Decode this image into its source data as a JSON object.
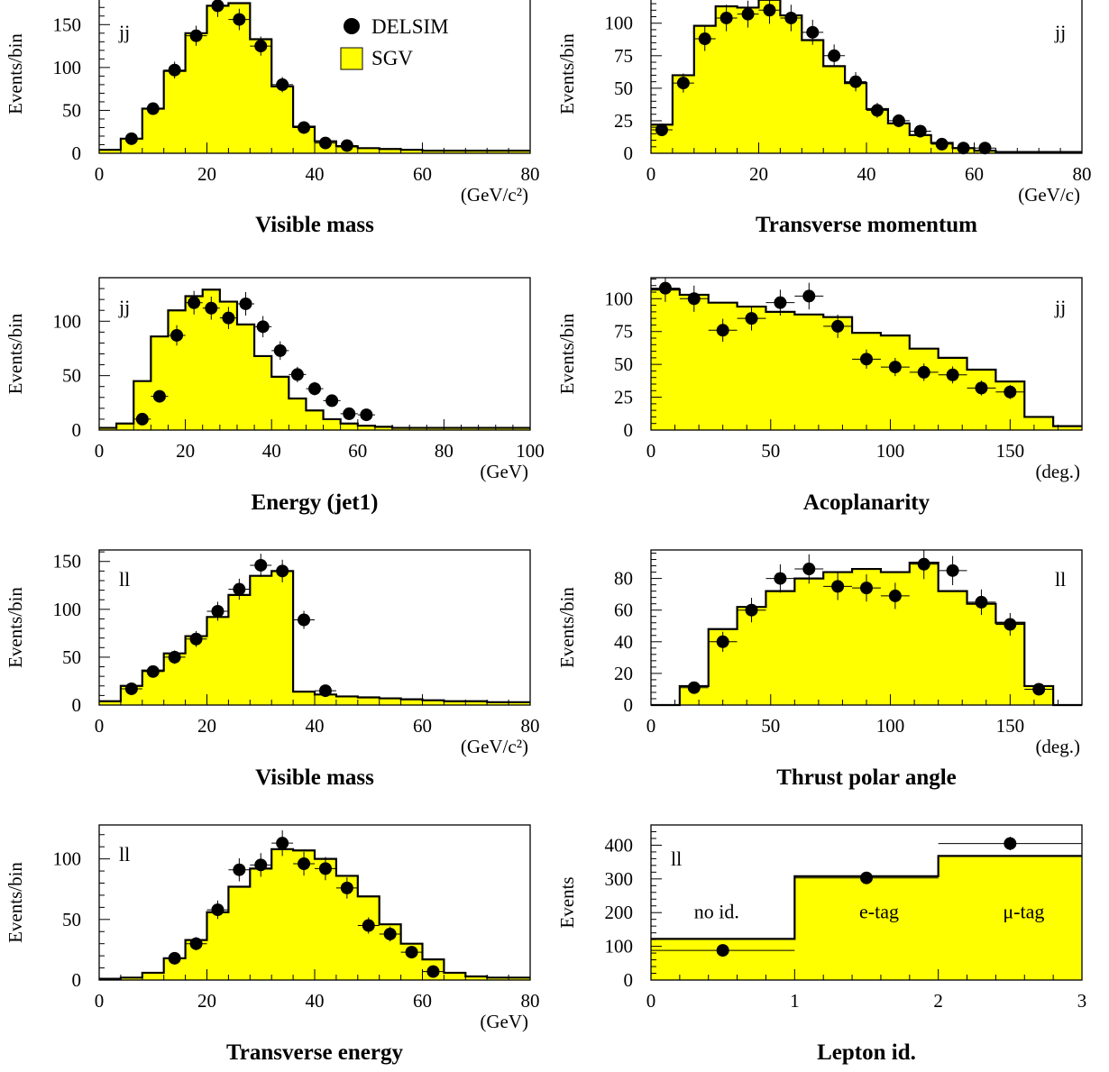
{
  "legend": {
    "points_label": "DELSIM",
    "hist_label": "SGV"
  },
  "colors": {
    "fill": "#ffff00",
    "line": "#000000"
  },
  "chart_data": [
    {
      "type": "bar",
      "title": "Visible mass",
      "ylabel": "Events/bin",
      "xunit": "(GeV/c²)",
      "tag": "jj",
      "xlim": [
        0,
        80
      ],
      "ylim": [
        0,
        185
      ],
      "xticks": [
        0,
        20,
        40,
        60,
        80
      ],
      "yticks": [
        0,
        50,
        100,
        150
      ],
      "bin_edges": [
        0,
        4,
        8,
        12,
        16,
        20,
        24,
        28,
        32,
        36,
        40,
        44,
        48,
        52,
        56,
        60,
        64,
        68,
        72,
        76,
        80
      ],
      "sgv": [
        4,
        17,
        52,
        96,
        140,
        172,
        175,
        133,
        78,
        31,
        14,
        8,
        6,
        5,
        4,
        3,
        3,
        3,
        3,
        3
      ],
      "delsim": [
        {
          "x": 6,
          "y": 17
        },
        {
          "x": 10,
          "y": 52
        },
        {
          "x": 14,
          "y": 97
        },
        {
          "x": 18,
          "y": 137
        },
        {
          "x": 22,
          "y": 172
        },
        {
          "x": 26,
          "y": 156
        },
        {
          "x": 30,
          "y": 125
        },
        {
          "x": 34,
          "y": 80
        },
        {
          "x": 38,
          "y": 30
        },
        {
          "x": 42,
          "y": 12
        },
        {
          "x": 46,
          "y": 9
        }
      ]
    },
    {
      "type": "bar",
      "title": "Transverse momentum",
      "ylabel": "Events/bin",
      "xunit": "(GeV/c)",
      "tag": "jj",
      "xlim": [
        0,
        80
      ],
      "ylim": [
        0,
        122
      ],
      "xticks": [
        0,
        20,
        40,
        60,
        80
      ],
      "yticks": [
        0,
        25,
        50,
        75,
        100
      ],
      "bin_edges": [
        0,
        4,
        8,
        12,
        16,
        20,
        24,
        28,
        32,
        36,
        40,
        44,
        48,
        52,
        56,
        60,
        64,
        68,
        72,
        76,
        80
      ],
      "sgv": [
        22,
        60,
        98,
        113,
        112,
        118,
        106,
        87,
        67,
        54,
        34,
        23,
        14,
        8,
        4,
        2,
        1,
        1,
        1,
        1
      ],
      "delsim": [
        {
          "x": 2,
          "y": 18
        },
        {
          "x": 6,
          "y": 54
        },
        {
          "x": 10,
          "y": 88
        },
        {
          "x": 14,
          "y": 104
        },
        {
          "x": 18,
          "y": 107
        },
        {
          "x": 22,
          "y": 110
        },
        {
          "x": 26,
          "y": 104
        },
        {
          "x": 30,
          "y": 93
        },
        {
          "x": 34,
          "y": 75
        },
        {
          "x": 38,
          "y": 55
        },
        {
          "x": 42,
          "y": 33
        },
        {
          "x": 46,
          "y": 25
        },
        {
          "x": 50,
          "y": 17
        },
        {
          "x": 54,
          "y": 7
        },
        {
          "x": 58,
          "y": 4
        },
        {
          "x": 62,
          "y": 4
        }
      ]
    },
    {
      "type": "bar",
      "title": "Energy (jet1)",
      "ylabel": "Events/bin",
      "xunit": "(GeV)",
      "tag": "jj",
      "xlim": [
        0,
        100
      ],
      "ylim": [
        0,
        140
      ],
      "xticks": [
        0,
        20,
        40,
        60,
        80,
        100
      ],
      "yticks": [
        0,
        50,
        100
      ],
      "bin_edges": [
        0,
        4,
        8,
        12,
        16,
        20,
        24,
        28,
        32,
        36,
        40,
        44,
        48,
        52,
        56,
        60,
        64,
        68,
        72,
        76,
        80,
        84,
        88,
        92,
        96,
        100
      ],
      "sgv": [
        2,
        6,
        45,
        86,
        110,
        123,
        129,
        118,
        97,
        68,
        49,
        29,
        18,
        10,
        6,
        4,
        3,
        2,
        2,
        2,
        2,
        2,
        2,
        2,
        2
      ],
      "delsim": [
        {
          "x": 10,
          "y": 10
        },
        {
          "x": 14,
          "y": 31
        },
        {
          "x": 18,
          "y": 87
        },
        {
          "x": 22,
          "y": 117
        },
        {
          "x": 26,
          "y": 112
        },
        {
          "x": 30,
          "y": 103
        },
        {
          "x": 34,
          "y": 116
        },
        {
          "x": 38,
          "y": 95
        },
        {
          "x": 42,
          "y": 73
        },
        {
          "x": 46,
          "y": 51
        },
        {
          "x": 50,
          "y": 38
        },
        {
          "x": 54,
          "y": 27
        },
        {
          "x": 58,
          "y": 15
        },
        {
          "x": 62,
          "y": 14
        }
      ]
    },
    {
      "type": "bar",
      "title": "Acoplanarity",
      "ylabel": "Events/bin",
      "xunit": "(deg.)",
      "tag": "jj",
      "xlim": [
        0,
        180
      ],
      "ylim": [
        0,
        116
      ],
      "xticks": [
        0,
        50,
        100,
        150
      ],
      "yticks": [
        0,
        25,
        50,
        75,
        100
      ],
      "bin_edges": [
        0,
        12,
        24,
        36,
        48,
        60,
        72,
        84,
        96,
        108,
        120,
        132,
        144,
        156,
        168,
        180
      ],
      "sgv": [
        107,
        103,
        97,
        94,
        90,
        88,
        86,
        74,
        72,
        62,
        55,
        46,
        37,
        10,
        3
      ],
      "delsim": [
        {
          "x": 6,
          "y": 108
        },
        {
          "x": 18,
          "y": 100
        },
        {
          "x": 30,
          "y": 76
        },
        {
          "x": 42,
          "y": 85
        },
        {
          "x": 54,
          "y": 97
        },
        {
          "x": 66,
          "y": 102
        },
        {
          "x": 78,
          "y": 79
        },
        {
          "x": 90,
          "y": 54
        },
        {
          "x": 102,
          "y": 48
        },
        {
          "x": 114,
          "y": 44
        },
        {
          "x": 126,
          "y": 42
        },
        {
          "x": 138,
          "y": 32
        },
        {
          "x": 150,
          "y": 29
        }
      ]
    },
    {
      "type": "bar",
      "title": "Visible mass",
      "ylabel": "Events/bin",
      "xunit": "(GeV/c²)",
      "tag": "ll",
      "xlim": [
        0,
        80
      ],
      "ylim": [
        0,
        162
      ],
      "xticks": [
        0,
        20,
        40,
        60,
        80
      ],
      "yticks": [
        0,
        50,
        100,
        150
      ],
      "bin_edges": [
        0,
        4,
        8,
        12,
        16,
        20,
        24,
        28,
        32,
        36,
        40,
        44,
        48,
        52,
        56,
        60,
        64,
        68,
        72,
        76,
        80
      ],
      "sgv": [
        4,
        20,
        36,
        54,
        72,
        92,
        115,
        135,
        140,
        14,
        11,
        9,
        8,
        7,
        6,
        5,
        4,
        4,
        3,
        3
      ],
      "delsim": [
        {
          "x": 6,
          "y": 17
        },
        {
          "x": 10,
          "y": 35
        },
        {
          "x": 14,
          "y": 50
        },
        {
          "x": 18,
          "y": 69
        },
        {
          "x": 22,
          "y": 98
        },
        {
          "x": 26,
          "y": 121
        },
        {
          "x": 30,
          "y": 146
        },
        {
          "x": 34,
          "y": 140
        },
        {
          "x": 38,
          "y": 89
        },
        {
          "x": 42,
          "y": 15
        }
      ]
    },
    {
      "type": "bar",
      "title": "Thrust polar angle",
      "ylabel": "Events/bin",
      "xunit": "(deg.)",
      "tag": "ll",
      "xlim": [
        0,
        180
      ],
      "ylim": [
        0,
        98
      ],
      "xticks": [
        0,
        50,
        100,
        150
      ],
      "yticks": [
        0,
        20,
        40,
        60,
        80
      ],
      "bin_edges": [
        0,
        12,
        24,
        36,
        48,
        60,
        72,
        84,
        96,
        108,
        120,
        132,
        144,
        156,
        168,
        180
      ],
      "sgv": [
        0,
        12,
        48,
        62,
        72,
        80,
        84,
        86,
        84,
        90,
        72,
        64,
        52,
        12,
        0
      ],
      "delsim": [
        {
          "x": 18,
          "y": 11
        },
        {
          "x": 30,
          "y": 40
        },
        {
          "x": 42,
          "y": 60
        },
        {
          "x": 54,
          "y": 80
        },
        {
          "x": 66,
          "y": 86
        },
        {
          "x": 78,
          "y": 75
        },
        {
          "x": 90,
          "y": 74
        },
        {
          "x": 102,
          "y": 69
        },
        {
          "x": 114,
          "y": 89
        },
        {
          "x": 126,
          "y": 85
        },
        {
          "x": 138,
          "y": 65
        },
        {
          "x": 150,
          "y": 51
        },
        {
          "x": 162,
          "y": 10
        }
      ]
    },
    {
      "type": "bar",
      "title": "Transverse energy",
      "ylabel": "Events/bin",
      "xunit": "(GeV)",
      "tag": "ll",
      "xlim": [
        0,
        80
      ],
      "ylim": [
        0,
        128
      ],
      "xticks": [
        0,
        20,
        40,
        60,
        80
      ],
      "yticks": [
        0,
        50,
        100
      ],
      "bin_edges": [
        0,
        4,
        8,
        12,
        16,
        20,
        24,
        28,
        32,
        36,
        40,
        44,
        48,
        52,
        56,
        60,
        64,
        68,
        72,
        76,
        80
      ],
      "sgv": [
        1,
        2,
        6,
        18,
        33,
        56,
        77,
        92,
        108,
        107,
        100,
        86,
        69,
        46,
        30,
        17,
        6,
        3,
        2,
        2
      ],
      "delsim": [
        {
          "x": 14,
          "y": 18
        },
        {
          "x": 18,
          "y": 30
        },
        {
          "x": 22,
          "y": 58
        },
        {
          "x": 26,
          "y": 91
        },
        {
          "x": 30,
          "y": 95
        },
        {
          "x": 34,
          "y": 113
        },
        {
          "x": 38,
          "y": 96
        },
        {
          "x": 42,
          "y": 92
        },
        {
          "x": 46,
          "y": 76
        },
        {
          "x": 50,
          "y": 45
        },
        {
          "x": 54,
          "y": 38
        },
        {
          "x": 58,
          "y": 23
        },
        {
          "x": 62,
          "y": 7
        }
      ]
    },
    {
      "type": "bar",
      "title": "Lepton id.",
      "ylabel": "Events",
      "xunit": "",
      "tag": "ll",
      "xlim": [
        0,
        3
      ],
      "ylim": [
        0,
        460
      ],
      "xticks": [
        0,
        1,
        2,
        3
      ],
      "yticks": [
        0,
        100,
        200,
        300,
        400
      ],
      "bin_edges": [
        0,
        1,
        2,
        3
      ],
      "sgv": [
        122,
        308,
        368
      ],
      "delsim": [
        {
          "x": 0.5,
          "y": 88
        },
        {
          "x": 1.5,
          "y": 303
        },
        {
          "x": 2.5,
          "y": 405
        }
      ],
      "category_labels": [
        {
          "x": 0.3,
          "y": 205,
          "text": "no id."
        },
        {
          "x": 1.45,
          "y": 205,
          "text": "e-tag"
        },
        {
          "x": 2.45,
          "y": 205,
          "text": "μ-tag"
        }
      ]
    }
  ]
}
